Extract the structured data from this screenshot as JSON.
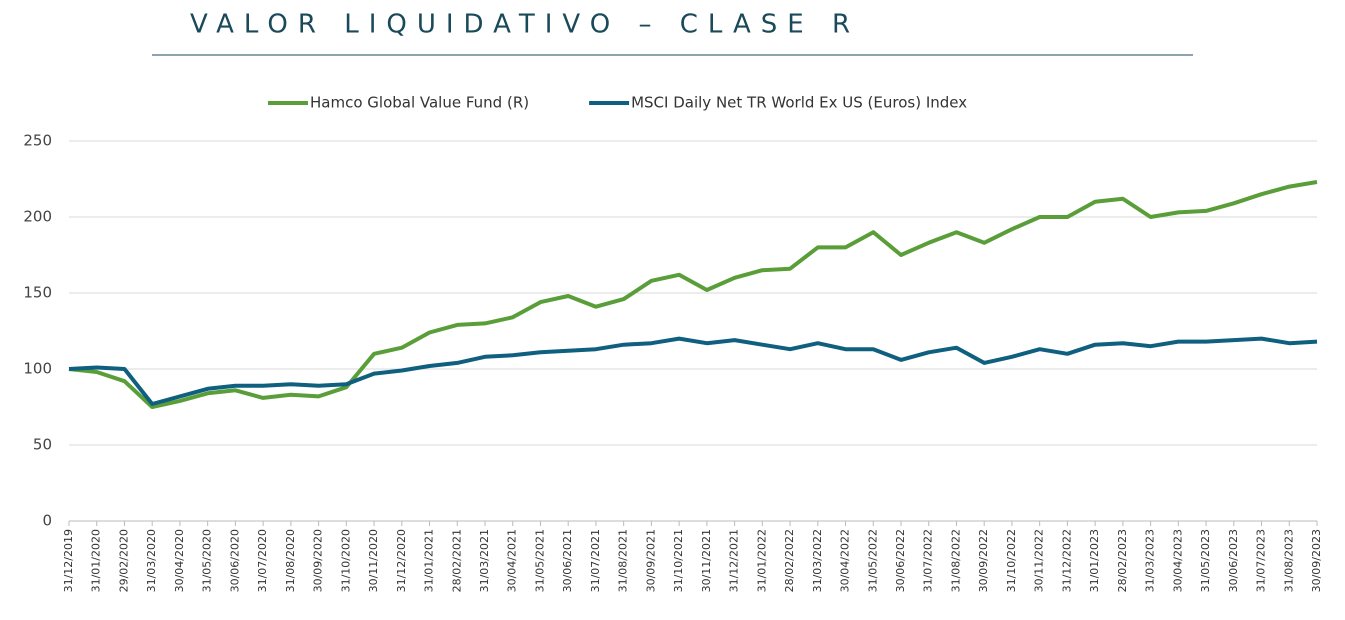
{
  "chart_data": {
    "type": "line",
    "title": "VALOR LIQUIDATIVO – CLASE R",
    "categories": [
      "31/12/2019",
      "31/01/2020",
      "29/02/2020",
      "31/03/2020",
      "30/04/2020",
      "31/05/2020",
      "30/06/2020",
      "31/07/2020",
      "31/08/2020",
      "30/09/2020",
      "31/10/2020",
      "30/11/2020",
      "31/12/2020",
      "31/01/2021",
      "28/02/2021",
      "31/03/2021",
      "30/04/2021",
      "31/05/2021",
      "30/06/2021",
      "31/07/2021",
      "31/08/2021",
      "30/09/2021",
      "31/10/2021",
      "30/11/2021",
      "31/12/2021",
      "31/01/2022",
      "28/02/2022",
      "31/03/2022",
      "30/04/2022",
      "31/05/2022",
      "30/06/2022",
      "31/07/2022",
      "31/08/2022",
      "30/09/2022",
      "31/10/2022",
      "30/11/2022",
      "31/12/2022",
      "31/01/2023",
      "28/02/2023",
      "31/03/2023",
      "30/04/2023",
      "31/05/2023",
      "30/06/2023",
      "31/07/2023",
      "31/08/2023",
      "30/09/2023"
    ],
    "series": [
      {
        "name": "Hamco Global Value Fund (R)",
        "color": "#5a9e3a",
        "values": [
          100,
          98,
          92,
          75,
          79,
          84,
          86,
          81,
          83,
          82,
          88,
          110,
          114,
          124,
          129,
          130,
          134,
          144,
          148,
          141,
          146,
          158,
          162,
          152,
          160,
          165,
          166,
          180,
          180,
          190,
          175,
          183,
          190,
          183,
          192,
          200,
          200,
          210,
          212,
          200,
          203,
          204,
          209,
          215,
          220,
          223
        ]
      },
      {
        "name": "MSCI Daily Net TR World Ex US (Euros) Index",
        "color": "#0f5f7f",
        "values": [
          100,
          101,
          100,
          77,
          82,
          87,
          89,
          89,
          90,
          89,
          90,
          97,
          99,
          102,
          104,
          108,
          109,
          111,
          112,
          113,
          116,
          117,
          120,
          117,
          119,
          116,
          113,
          117,
          113,
          113,
          106,
          111,
          114,
          104,
          108,
          113,
          110,
          116,
          117,
          115,
          118,
          118,
          119,
          120,
          117,
          118
        ]
      }
    ],
    "ylim": [
      0,
      250
    ],
    "yticks": [
      0,
      50,
      100,
      150,
      200,
      250
    ],
    "grid": true,
    "legend": "top"
  }
}
